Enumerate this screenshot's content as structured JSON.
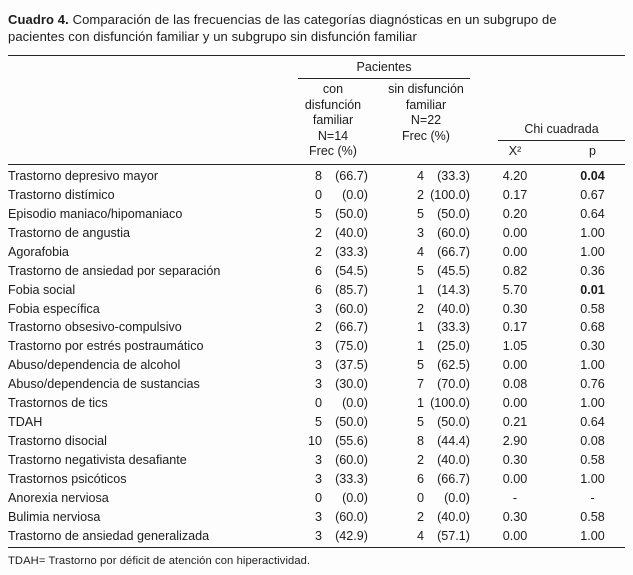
{
  "title": {
    "label": "Cuadro 4.",
    "text": "Comparación de las frecuencias de las categorías diagnósticas en un subgrupo de pacientes con disfunción familiar y un subgrupo sin disfunción familiar"
  },
  "table": {
    "header": {
      "patients_label": "Pacientes",
      "group_fd": {
        "l1": "con disfunción",
        "l2": "familiar",
        "l3": "N=14",
        "l4": "Frec (%)"
      },
      "group_sd": {
        "l1": "sin disfunción",
        "l2": "familiar",
        "l3": "N=22",
        "l4": "Frec (%)"
      },
      "chi_label": "Chi cuadrada",
      "chi_col": "X²",
      "p_col": "p"
    },
    "rows": [
      {
        "name": "Trastorno depresivo mayor",
        "fd_n": "8",
        "fd_pct": "(66.7)",
        "sd_n": "4",
        "sd_pct": "(33.3)",
        "chi": "4.20",
        "p": "0.04",
        "p_bold": true
      },
      {
        "name": "Trastorno distímico",
        "fd_n": "0",
        "fd_pct": "(0.0)",
        "sd_n": "2",
        "sd_pct": "(100.0)",
        "chi": "0.17",
        "p": "0.67"
      },
      {
        "name": "Episodio maniaco/hipomaniaco",
        "fd_n": "5",
        "fd_pct": "(50.0)",
        "sd_n": "5",
        "sd_pct": "(50.0)",
        "chi": "0.20",
        "p": "0.64"
      },
      {
        "name": "Trastorno de angustia",
        "fd_n": "2",
        "fd_pct": "(40.0)",
        "sd_n": "3",
        "sd_pct": "(60.0)",
        "chi": "0.00",
        "p": "1.00"
      },
      {
        "name": "Agorafobia",
        "fd_n": "2",
        "fd_pct": "(33.3)",
        "sd_n": "4",
        "sd_pct": "(66.7)",
        "chi": "0.00",
        "p": "1.00"
      },
      {
        "name": "Trastorno de ansiedad por separación",
        "fd_n": "6",
        "fd_pct": "(54.5)",
        "sd_n": "5",
        "sd_pct": "(45.5)",
        "chi": "0.82",
        "p": "0.36"
      },
      {
        "name": "Fobia social",
        "fd_n": "6",
        "fd_pct": "(85.7)",
        "sd_n": "1",
        "sd_pct": "(14.3)",
        "chi": "5.70",
        "p": "0.01",
        "p_bold": true
      },
      {
        "name": "Fobia específica",
        "fd_n": "3",
        "fd_pct": "(60.0)",
        "sd_n": "2",
        "sd_pct": "(40.0)",
        "chi": "0.30",
        "p": "0.58"
      },
      {
        "name": "Trastorno obsesivo-compulsivo",
        "fd_n": "2",
        "fd_pct": "(66.7)",
        "sd_n": "1",
        "sd_pct": "(33.3)",
        "chi": "0.17",
        "p": "0.68"
      },
      {
        "name": "Trastorno por estrés postraumático",
        "fd_n": "3",
        "fd_pct": "(75.0)",
        "sd_n": "1",
        "sd_pct": "(25.0)",
        "chi": "1.05",
        "p": "0.30"
      },
      {
        "name": "Abuso/dependencia de alcohol",
        "fd_n": "3",
        "fd_pct": "(37.5)",
        "sd_n": "5",
        "sd_pct": "(62.5)",
        "chi": "0.00",
        "p": "1.00"
      },
      {
        "name": "Abuso/dependencia de sustancias",
        "fd_n": "3",
        "fd_pct": "(30.0)",
        "sd_n": "7",
        "sd_pct": "(70.0)",
        "chi": "0.08",
        "p": "0.76"
      },
      {
        "name": "Trastornos de tics",
        "fd_n": "0",
        "fd_pct": "(0.0)",
        "sd_n": "1",
        "sd_pct": "(100.0)",
        "chi": "0.00",
        "p": "1.00"
      },
      {
        "name": "TDAH",
        "fd_n": "5",
        "fd_pct": "(50.0)",
        "sd_n": "5",
        "sd_pct": "(50.0)",
        "chi": "0.21",
        "p": "0.64"
      },
      {
        "name": "Trastorno disocial",
        "fd_n": "10",
        "fd_pct": "(55.6)",
        "sd_n": "8",
        "sd_pct": "(44.4)",
        "chi": "2.90",
        "p": "0.08"
      },
      {
        "name": "Trastorno negativista desafiante",
        "fd_n": "3",
        "fd_pct": "(60.0)",
        "sd_n": "2",
        "sd_pct": "(40.0)",
        "chi": "0.30",
        "p": "0.58"
      },
      {
        "name": "Trastornos psicóticos",
        "fd_n": "3",
        "fd_pct": "(33.3)",
        "sd_n": "6",
        "sd_pct": "(66.7)",
        "chi": "0.00",
        "p": "1.00"
      },
      {
        "name": "Anorexia nerviosa",
        "fd_n": "0",
        "fd_pct": "(0.0)",
        "sd_n": "0",
        "sd_pct": "(0.0)",
        "chi": "-",
        "p": "-"
      },
      {
        "name": "Bulimia nerviosa",
        "fd_n": "3",
        "fd_pct": "(60.0)",
        "sd_n": "2",
        "sd_pct": "(40.0)",
        "chi": "0.30",
        "p": "0.58"
      },
      {
        "name": "Trastorno de ansiedad generalizada",
        "fd_n": "3",
        "fd_pct": "(42.9)",
        "sd_n": "4",
        "sd_pct": "(57.1)",
        "chi": "0.00",
        "p": "1.00"
      }
    ]
  },
  "footnote": "TDAH= Trastorno por déficit de atención con hiperactividad."
}
